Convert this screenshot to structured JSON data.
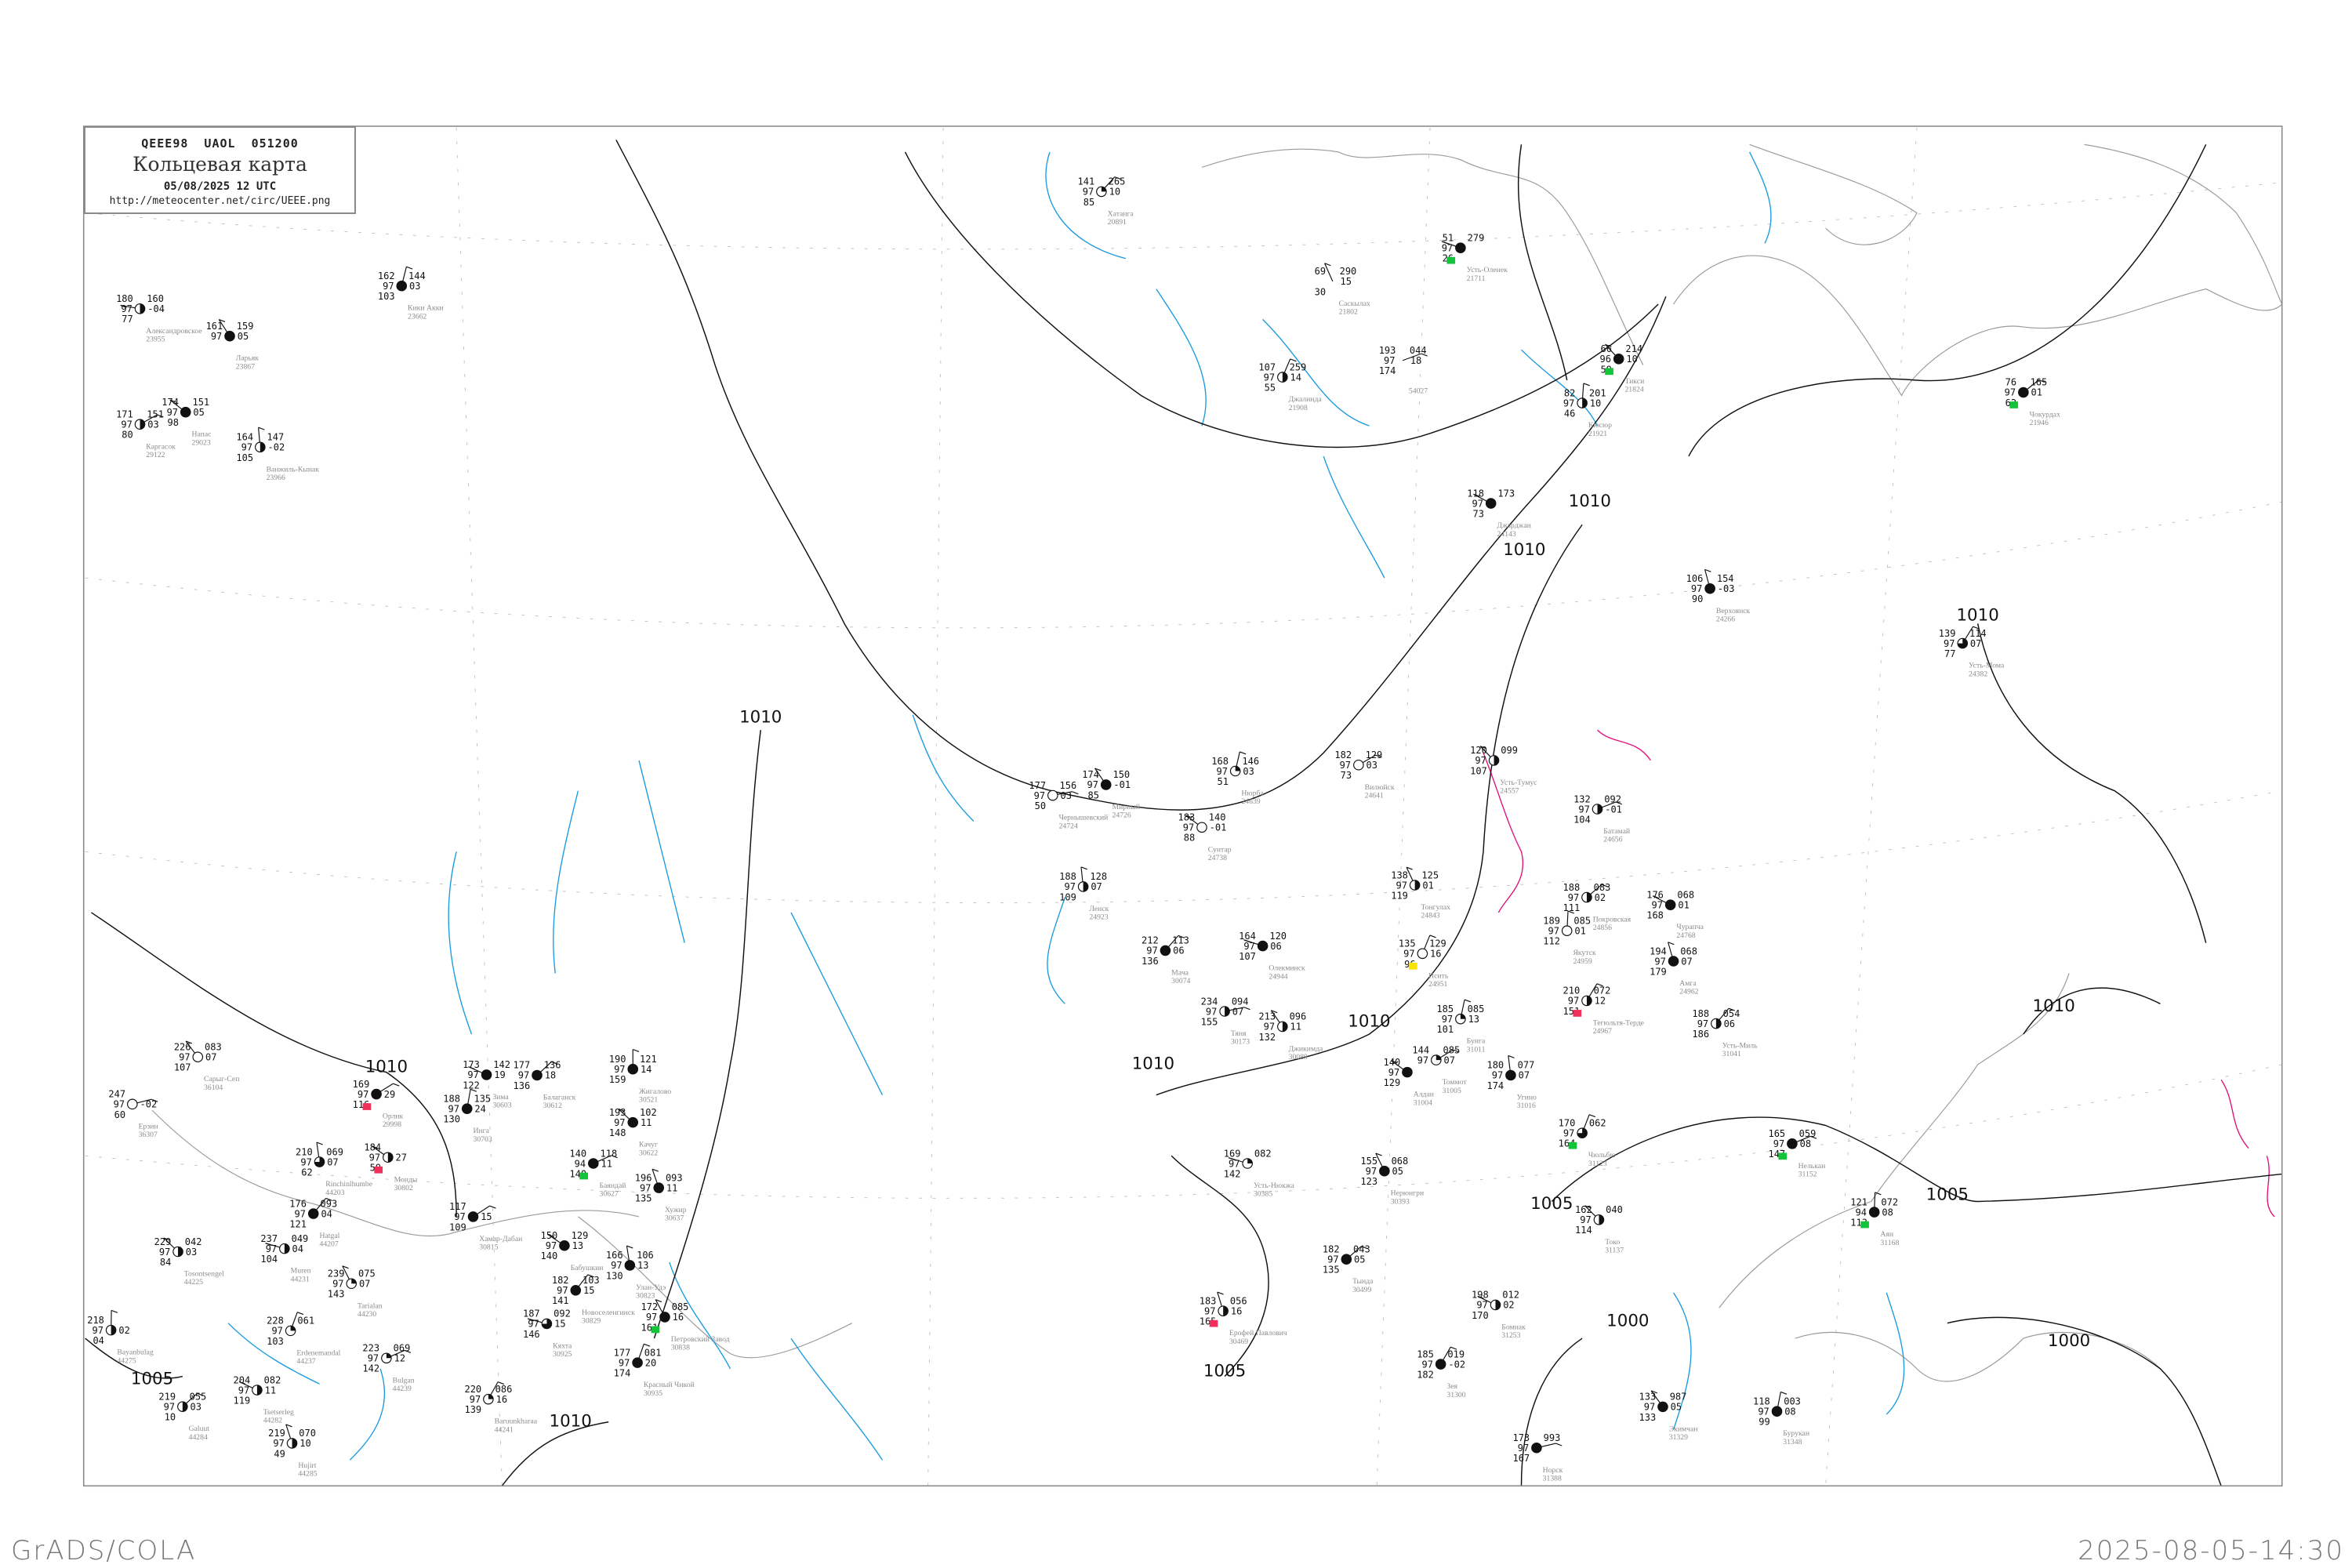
{
  "header": {
    "code_line": "QEEE98   UAOL   051200",
    "title": "Кольцевая карта",
    "datetime": "05/08/2025 12 UTC",
    "url": "http://meteocenter.net/circ/UEEE.png"
  },
  "footer": {
    "left": "GrADS/COLA",
    "right": "2025-08-05-14:30"
  },
  "colors": {
    "isobar": "#111111",
    "coast": "#9a9a9a",
    "river": "#1a9be0",
    "front": "#e0107a",
    "flag_green": "#11c43a",
    "flag_red": "#f0305a",
    "flag_yellow": "#f5e400",
    "label_gray": "#8c8c8c"
  },
  "isobar_labels": [
    "1010",
    "1010",
    "1010",
    "1010",
    "1010",
    "1010",
    "1010",
    "1010",
    "1010",
    "1005",
    "1005",
    "1005",
    "1005",
    "1000",
    "1000"
  ],
  "stations": [
    {
      "name": "Александровское",
      "id": "23955",
      "t": "180",
      "m": "97",
      "d": "77",
      "p": "160",
      "tend": "-04",
      "cover": 0.5
    },
    {
      "name": "Ларьяк",
      "id": "23867",
      "t": "161",
      "m": "97",
      "d": "",
      "p": "159",
      "tend": "05",
      "cover": 1
    },
    {
      "name": "Кики Акки",
      "id": "23662",
      "t": "162",
      "m": "97",
      "d": "103",
      "p": "144",
      "tend": "03",
      "cover": 1
    },
    {
      "name": "Каргасок",
      "id": "29122",
      "t": "171",
      "m": "97",
      "d": "80",
      "p": "151",
      "tend": "03",
      "cover": 0.5
    },
    {
      "name": "Напас",
      "id": "29023",
      "t": "174",
      "m": "97",
      "d": "98",
      "p": "151",
      "tend": "05",
      "cover": 1
    },
    {
      "name": "Ванжиль-Кынак",
      "id": "23966",
      "t": "164",
      "m": "97",
      "d": "105",
      "p": "147",
      "tend": "-02",
      "cover": 0.5
    },
    {
      "name": "Хатанга",
      "id": "20891",
      "t": "141",
      "m": "97",
      "d": "85",
      "p": "265",
      "tend": "10",
      "cover": 0.25
    },
    {
      "name": "Усть-Оленек",
      "id": "21711",
      "t": "51",
      "m": "97",
      "d": "26",
      "p": "279",
      "tend": "",
      "cover": 1,
      "flag": "green"
    },
    {
      "name": "Саскылах",
      "id": "21802",
      "t": "69",
      "m": "",
      "d": "30",
      "p": "290",
      "tend": "15",
      "cover": null
    },
    {
      "name": "Джалинда",
      "id": "21908",
      "t": "107",
      "m": "97",
      "d": "55",
      "p": "259",
      "tend": "14",
      "cover": 0.5
    },
    {
      "name": "",
      "id": "54027",
      "t": "193",
      "m": "97",
      "d": "174",
      "p": "044",
      "tend": "18",
      "cover": null
    },
    {
      "name": "Тикси",
      "id": "21824",
      "t": "66",
      "m": "96",
      "d": "59",
      "p": "214",
      "tend": "10",
      "cover": 1,
      "flag": "green"
    },
    {
      "name": "Кюсюр",
      "id": "21921",
      "t": "82",
      "m": "97",
      "d": "46",
      "p": "201",
      "tend": "10",
      "cover": 0.5
    },
    {
      "name": "Чокурдах",
      "id": "21946",
      "t": "76",
      "m": "97",
      "d": "62",
      "p": "165",
      "tend": "01",
      "cover": 1,
      "flag": "green"
    },
    {
      "name": "Джарджан",
      "id": "24143",
      "t": "118",
      "m": "97",
      "d": "73",
      "p": "173",
      "tend": "",
      "cover": 1
    },
    {
      "name": "Верхоянск",
      "id": "24266",
      "t": "106",
      "m": "97",
      "d": "90",
      "p": "154",
      "tend": "-03",
      "cover": 1
    },
    {
      "name": "Усть-Мома",
      "id": "24382",
      "t": "139",
      "m": "97",
      "d": "77",
      "p": "114",
      "tend": "07",
      "cover": 0.75
    },
    {
      "name": "Чернышевский",
      "id": "24724",
      "t": "177",
      "m": "97",
      "d": "50",
      "p": "156",
      "tend": "03",
      "cover": 0
    },
    {
      "name": "Мирный",
      "id": "24726",
      "t": "174",
      "m": "97",
      "d": "85",
      "p": "150",
      "tend": "-01",
      "cover": 1
    },
    {
      "name": "Нюрба",
      "id": "24639",
      "t": "168",
      "m": "97",
      "d": "51",
      "p": "146",
      "tend": "03",
      "cover": 0.25
    },
    {
      "name": "Вилюйск",
      "id": "24641",
      "t": "182",
      "m": "97",
      "d": "73",
      "p": "129",
      "tend": "03",
      "cover": 0
    },
    {
      "name": "Сунтар",
      "id": "24738",
      "t": "183",
      "m": "97",
      "d": "88",
      "p": "140",
      "tend": "-01",
      "cover": 0
    },
    {
      "name": "Ленск",
      "id": "24923",
      "t": "188",
      "m": "97",
      "d": "109",
      "p": "128",
      "tend": "07",
      "cover": 0.5
    },
    {
      "name": "Мача",
      "id": "30074",
      "t": "212",
      "m": "97",
      "d": "136",
      "p": "113",
      "tend": "06",
      "cover": 1
    },
    {
      "name": "Олекминск",
      "id": "24944",
      "t": "164",
      "m": "97",
      "d": "107",
      "p": "120",
      "tend": "06",
      "cover": 1
    },
    {
      "name": "Тонгулах",
      "id": "24843",
      "t": "138",
      "m": "97",
      "d": "119",
      "p": "125",
      "tend": "01",
      "cover": 0.5
    },
    {
      "name": "Исить",
      "id": "24951",
      "t": "135",
      "m": "97",
      "d": "96",
      "p": "129",
      "tend": "16",
      "cover": 0,
      "flag": "yellow"
    },
    {
      "name": "Батамай",
      "id": "24656",
      "t": "132",
      "m": "97",
      "d": "104",
      "p": "092",
      "tend": "-01",
      "cover": 0.5
    },
    {
      "name": "Усть-Тумус",
      "id": "24557",
      "t": "120",
      "m": "97",
      "d": "107",
      "p": "099",
      "tend": "",
      "cover": 0.5
    },
    {
      "name": "Якутск",
      "id": "24959",
      "t": "189",
      "m": "97",
      "d": "112",
      "p": "085",
      "tend": "01",
      "cover": 0
    },
    {
      "name": "Покровская",
      "id": "24856",
      "t": "188",
      "m": "97",
      "d": "111",
      "p": "083",
      "tend": "02",
      "cover": 0.5
    },
    {
      "name": "Чурапча",
      "id": "24768",
      "t": "176",
      "m": "97",
      "d": "168",
      "p": "068",
      "tend": "01",
      "cover": 1
    },
    {
      "name": "Амга",
      "id": "24962",
      "t": "194",
      "m": "97",
      "d": "179",
      "p": "068",
      "tend": "07",
      "cover": 1
    },
    {
      "name": "Тегюльтя-Терде",
      "id": "24967",
      "t": "210",
      "m": "97",
      "d": "151",
      "p": "072",
      "tend": "12",
      "cover": 0.5,
      "flag": "red"
    },
    {
      "name": "Тяня",
      "id": "30173",
      "t": "234",
      "m": "97",
      "d": "155",
      "p": "094",
      "tend": "07",
      "cover": 0.5
    },
    {
      "name": "Джикимда",
      "id": "30089",
      "t": "213",
      "m": "97",
      "d": "132",
      "p": "096",
      "tend": "11",
      "cover": 0.5
    },
    {
      "name": "Бунга",
      "id": "31011",
      "t": "185",
      "m": "97",
      "d": "101",
      "p": "085",
      "tend": "13",
      "cover": 0.25
    },
    {
      "name": "Томмот",
      "id": "31005",
      "t": "144",
      "m": "97",
      "d": "",
      "p": "085",
      "tend": "07",
      "cover": 0.25
    },
    {
      "name": "Алдан",
      "id": "31004",
      "t": "140",
      "m": "97",
      "d": "129",
      "p": "",
      "tend": "",
      "cover": 1
    },
    {
      "name": "Угино",
      "id": "31016",
      "t": "180",
      "m": "97",
      "d": "174",
      "p": "077",
      "tend": "07",
      "cover": 1
    },
    {
      "name": "Усть-Миль",
      "id": "31041",
      "t": "188",
      "m": "97",
      "d": "186",
      "p": "054",
      "tend": "06",
      "cover": 0.5
    },
    {
      "name": "Усть-Нюкжа",
      "id": "30385",
      "t": "169",
      "m": "97",
      "d": "142",
      "p": "082",
      "tend": "",
      "cover": 0.25
    },
    {
      "name": "Нерюнгри",
      "id": "30393",
      "t": "155",
      "m": "97",
      "d": "123",
      "p": "068",
      "tend": "05",
      "cover": 1
    },
    {
      "name": "Чюльбю",
      "id": "31123",
      "t": "170",
      "m": "97",
      "d": "164",
      "p": "062",
      "tend": "",
      "cover": 0.75,
      "flag": "green"
    },
    {
      "name": "Нелькан",
      "id": "31152",
      "t": "165",
      "m": "97",
      "d": "147",
      "p": "059",
      "tend": "08",
      "cover": 1,
      "flag": "green"
    },
    {
      "name": "Токо",
      "id": "31137",
      "t": "162",
      "m": "97",
      "d": "114",
      "p": "040",
      "tend": "",
      "cover": 0.5
    },
    {
      "name": "Аян",
      "id": "31168",
      "t": "121",
      "m": "94",
      "d": "113",
      "p": "072",
      "tend": "08",
      "cover": 1,
      "flag": "green"
    },
    {
      "name": "Тында",
      "id": "30499",
      "t": "182",
      "m": "97",
      "d": "135",
      "p": "043",
      "tend": "05",
      "cover": 1
    },
    {
      "name": "Бомнак",
      "id": "31253",
      "t": "198",
      "m": "97",
      "d": "170",
      "p": "012",
      "tend": "02",
      "cover": 0.5
    },
    {
      "name": "Ерофей Павлович",
      "id": "30469",
      "t": "183",
      "m": "97",
      "d": "165",
      "p": "056",
      "tend": "16",
      "cover": 0.5,
      "flag": "red"
    },
    {
      "name": "Зея",
      "id": "31300",
      "t": "185",
      "m": "97",
      "d": "182",
      "p": "019",
      "tend": "-02",
      "cover": 1
    },
    {
      "name": "Норск",
      "id": "31388",
      "t": "173",
      "m": "97",
      "d": "167",
      "p": "993",
      "tend": "",
      "cover": 1
    },
    {
      "name": "Экимчан",
      "id": "31329",
      "t": "133",
      "m": "97",
      "d": "133",
      "p": "987",
      "tend": "05",
      "cover": 1
    },
    {
      "name": "Бурукан",
      "id": "31348",
      "t": "118",
      "m": "97",
      "d": "99",
      "p": "003",
      "tend": "08",
      "cover": 1
    },
    {
      "name": "Орлик",
      "id": "29998",
      "t": "169",
      "m": "97",
      "d": "116",
      "p": "",
      "tend": "29",
      "cover": 1,
      "flag": "red"
    },
    {
      "name": "Монды",
      "id": "30802",
      "t": "184",
      "m": "97",
      "d": "59",
      "p": "",
      "tend": "27",
      "cover": 0.5,
      "flag": "red"
    },
    {
      "name": "Rinchinlhumbe",
      "id": "44203",
      "t": "210",
      "m": "97",
      "d": "62",
      "p": "069",
      "tend": "07",
      "cover": 0.75
    },
    {
      "name": "Hatgal",
      "id": "44207",
      "t": "176",
      "m": "97",
      "d": "121",
      "p": "093",
      "tend": "04",
      "cover": 1
    },
    {
      "name": "Muren",
      "id": "44231",
      "t": "237",
      "m": "97",
      "d": "104",
      "p": "049",
      "tend": "04",
      "cover": 0.5
    },
    {
      "name": "Tarialan",
      "id": "44230",
      "t": "239",
      "m": "97",
      "d": "143",
      "p": "075",
      "tend": "07",
      "cover": 0.25
    },
    {
      "name": "Erdenemandal",
      "id": "44237",
      "t": "228",
      "m": "97",
      "d": "103",
      "p": "061",
      "tend": "",
      "cover": 0.25
    },
    {
      "name": "Bulgan",
      "id": "44239",
      "t": "223",
      "m": "97",
      "d": "142",
      "p": "069",
      "tend": "12",
      "cover": 0.25
    },
    {
      "name": "Tosontsengel",
      "id": "44225",
      "t": "229",
      "m": "97",
      "d": "84",
      "p": "042",
      "tend": "03",
      "cover": 0.5
    },
    {
      "name": "Bayanbulag",
      "id": "44275",
      "t": "218",
      "m": "97",
      "d": "04",
      "p": "",
      "tend": "02",
      "cover": 0.5
    },
    {
      "name": "Galuut",
      "id": "44284",
      "t": "219",
      "m": "97",
      "d": "10",
      "p": "055",
      "tend": "03",
      "cover": 0.5
    },
    {
      "name": "Tsetserleg",
      "id": "44282",
      "t": "204",
      "m": "97",
      "d": "119",
      "p": "082",
      "tend": "11",
      "cover": 0.5
    },
    {
      "name": "Hujirt",
      "id": "44285",
      "t": "219",
      "m": "97",
      "d": "49",
      "p": "070",
      "tend": "10",
      "cover": 0.5
    },
    {
      "name": "Baruunkharaa",
      "id": "44241",
      "t": "220",
      "m": "97",
      "d": "139",
      "p": "086",
      "tend": "16",
      "cover": 0.25
    },
    {
      "name": "Ерзин",
      "id": "36307",
      "t": "247",
      "m": "97",
      "d": "60",
      "p": "",
      "tend": "-02",
      "cover": 0
    },
    {
      "name": "Сарыг-Сеп",
      "id": "36104",
      "t": "226",
      "m": "97",
      "d": "107",
      "p": "083",
      "tend": "07",
      "cover": 0
    },
    {
      "name": "Инга",
      "id": "30703",
      "t": "188",
      "m": "97",
      "d": "130",
      "p": "135",
      "tend": "24",
      "cover": 1
    },
    {
      "name": "Хамар-Дабан",
      "id": "30815",
      "t": "117",
      "m": "97",
      "d": "109",
      "p": "",
      "tend": "15",
      "cover": 1
    },
    {
      "name": "Бабушкин",
      "id": "",
      "t": "150",
      "m": "97",
      "d": "140",
      "p": "129",
      "tend": "13",
      "cover": 1
    },
    {
      "name": "Улан-Удэ",
      "id": "30823",
      "t": "166",
      "m": "97",
      "d": "130",
      "p": "106",
      "tend": "13",
      "cover": 1
    },
    {
      "name": "Новоселенгинск",
      "id": "30829",
      "t": "182",
      "m": "97",
      "d": "141",
      "p": "103",
      "tend": "15",
      "cover": 1
    },
    {
      "name": "Кяхта",
      "id": "30925",
      "t": "187",
      "m": "97",
      "d": "146",
      "p": "092",
      "tend": "15",
      "cover": 0.75
    },
    {
      "name": "Петровский Завод",
      "id": "30838",
      "t": "172",
      "m": "97",
      "d": "161",
      "p": "085",
      "tend": "16",
      "cover": 1,
      "flag": "green"
    },
    {
      "name": "Красный Чикой",
      "id": "30935",
      "t": "177",
      "m": "97",
      "d": "174",
      "p": "081",
      "tend": "20",
      "cover": 1
    },
    {
      "name": "Баяндай",
      "id": "30627",
      "t": "140",
      "m": "94",
      "d": "140",
      "p": "118",
      "tend": "11",
      "cover": 1,
      "flag": "green"
    },
    {
      "name": "Качуг",
      "id": "30622",
      "t": "193",
      "m": "97",
      "d": "148",
      "p": "102",
      "tend": "11",
      "cover": 1
    },
    {
      "name": "Жигалово",
      "id": "30521",
      "t": "190",
      "m": "97",
      "d": "159",
      "p": "121",
      "tend": "14",
      "cover": 1
    },
    {
      "name": "Балаганск",
      "id": "30612",
      "t": "177",
      "m": "97",
      "d": "136",
      "p": "136",
      "tend": "18",
      "cover": 1
    },
    {
      "name": "Зима",
      "id": "30603",
      "t": "173",
      "m": "97",
      "d": "122",
      "p": "142",
      "tend": "19",
      "cover": 1
    },
    {
      "name": "Хужир",
      "id": "30637",
      "t": "196",
      "m": "97",
      "d": "135",
      "p": "093",
      "tend": "11",
      "cover": 1
    }
  ]
}
